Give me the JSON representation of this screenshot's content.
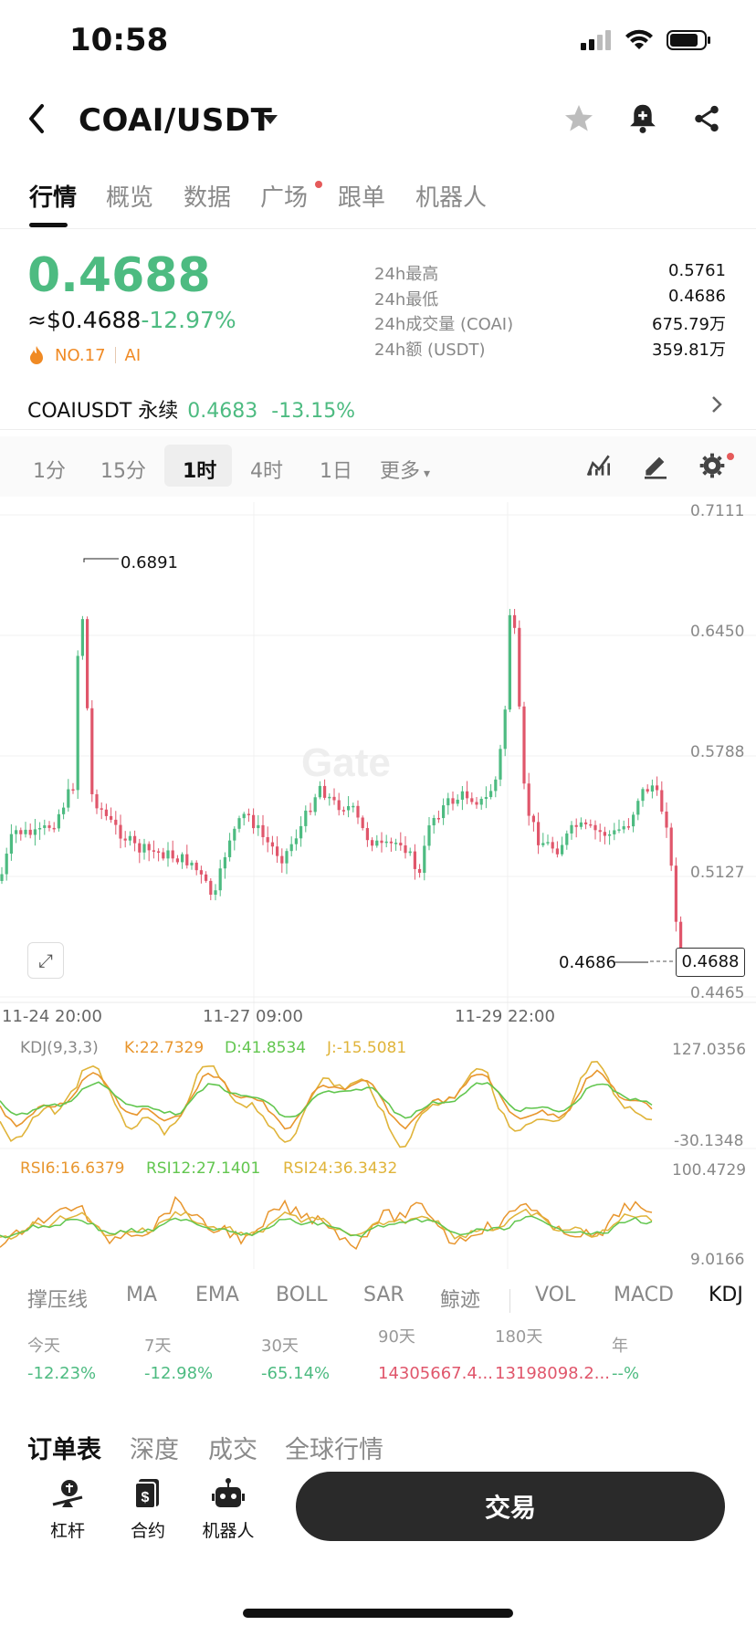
{
  "status_bar": {
    "time": "10:58"
  },
  "header": {
    "pair": "COAI/USDT"
  },
  "tabs": [
    {
      "label": "行情",
      "active": true
    },
    {
      "label": "概览"
    },
    {
      "label": "数据"
    },
    {
      "label": "广场",
      "dot": true
    },
    {
      "label": "跟单"
    },
    {
      "label": "机器人"
    }
  ],
  "ticker": {
    "price": "0.4688",
    "usd_price": "≈$0.4688",
    "change": "-12.97%",
    "rank": "NO.17",
    "tag": "AI"
  },
  "stats": [
    {
      "label": "24h最高",
      "value": "0.5761"
    },
    {
      "label": "24h最低",
      "value": "0.4686"
    },
    {
      "label": "24h成交量 (COAI)",
      "value": "675.79万"
    },
    {
      "label": "24h额 (USDT)",
      "value": "359.81万"
    }
  ],
  "perpetual": {
    "name": "COAIUSDT 永续",
    "price": "0.4683",
    "change": "-13.15%"
  },
  "timeframes": [
    "1分",
    "15分",
    "1时",
    "4时",
    "1日",
    "更多"
  ],
  "active_timeframe": "1时",
  "chart": {
    "y_ticks": [
      "0.7111",
      "0.6450",
      "0.5788",
      "0.5127",
      "0.4465"
    ],
    "dates": [
      "11-24 20:00",
      "11-27 09:00",
      "11-29 22:00"
    ],
    "high_marker": "0.6891",
    "low_marker": "0.4686",
    "last_price": "0.4688",
    "watermark": "Gate"
  },
  "kdj": {
    "label": "KDJ(9,3,3)",
    "k": "K:22.7329",
    "d": "D:41.8534",
    "j": "J:-15.5081",
    "top": "127.0356",
    "bottom": "-30.1348"
  },
  "rsi": {
    "rsi6": "RSI6:16.6379",
    "rsi12": "RSI12:27.1401",
    "rsi24": "RSI24:36.3432",
    "top": "100.4729",
    "bottom": "9.0166"
  },
  "indicator_tabs": [
    "撑压线",
    "MA",
    "EMA",
    "BOLL",
    "SAR",
    "鲸迹",
    "VOL",
    "MACD",
    "KDJ"
  ],
  "active_indicator": "KDJ",
  "performance": [
    {
      "period": "今天",
      "value": "-12.23%",
      "color": "#4dbb81"
    },
    {
      "period": "7天",
      "value": "-12.98%",
      "color": "#4dbb81"
    },
    {
      "period": "30天",
      "value": "-65.14%",
      "color": "#4dbb81"
    },
    {
      "period": "90天",
      "value": "14305667.4...",
      "color": "#e0566b"
    },
    {
      "period": "180天",
      "value": "13198098.2...",
      "color": "#e0566b"
    },
    {
      "period": "年",
      "value": "--%",
      "color": "#4dbb81"
    }
  ],
  "bottom_tabs": [
    "订单表",
    "深度",
    "成交",
    "全球行情"
  ],
  "dock": [
    {
      "label": "杠杆",
      "icon": "leverage-icon"
    },
    {
      "label": "合约",
      "icon": "contract-icon"
    },
    {
      "label": "机器人",
      "icon": "robot-icon"
    }
  ],
  "trade_button": "交易",
  "colors": {
    "up": "#4dbb81",
    "down": "#e0566b",
    "brand_bg": "#2a2a2a"
  }
}
